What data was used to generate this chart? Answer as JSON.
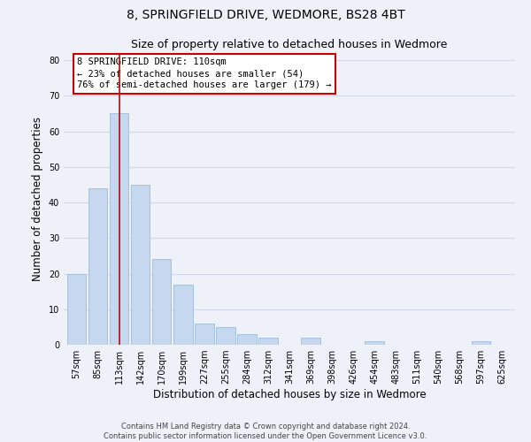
{
  "title": "8, SPRINGFIELD DRIVE, WEDMORE, BS28 4BT",
  "subtitle": "Size of property relative to detached houses in Wedmore",
  "xlabel": "Distribution of detached houses by size in Wedmore",
  "ylabel": "Number of detached properties",
  "bar_labels": [
    "57sqm",
    "85sqm",
    "113sqm",
    "142sqm",
    "170sqm",
    "199sqm",
    "227sqm",
    "255sqm",
    "284sqm",
    "312sqm",
    "341sqm",
    "369sqm",
    "398sqm",
    "426sqm",
    "454sqm",
    "483sqm",
    "511sqm",
    "540sqm",
    "568sqm",
    "597sqm",
    "625sqm"
  ],
  "bar_values": [
    20,
    44,
    65,
    45,
    24,
    17,
    6,
    5,
    3,
    2,
    0,
    2,
    0,
    0,
    1,
    0,
    0,
    0,
    0,
    1,
    0
  ],
  "bar_color": "#c5d8f0",
  "bar_edge_color": "#a0bcd8",
  "highlight_index": 2,
  "highlight_line_color": "#cc0000",
  "ylim": [
    0,
    82
  ],
  "yticks": [
    0,
    10,
    20,
    30,
    40,
    50,
    60,
    70,
    80
  ],
  "annotation_box_text": "8 SPRINGFIELD DRIVE: 110sqm\n← 23% of detached houses are smaller (54)\n76% of semi-detached houses are larger (179) →",
  "footer_text": "Contains HM Land Registry data © Crown copyright and database right 2024.\nContains public sector information licensed under the Open Government Licence v3.0.",
  "background_color": "#eef2f8",
  "grid_color": "#d0d8e8",
  "title_fontsize": 10,
  "subtitle_fontsize": 9,
  "axis_label_fontsize": 8.5,
  "tick_fontsize": 7
}
